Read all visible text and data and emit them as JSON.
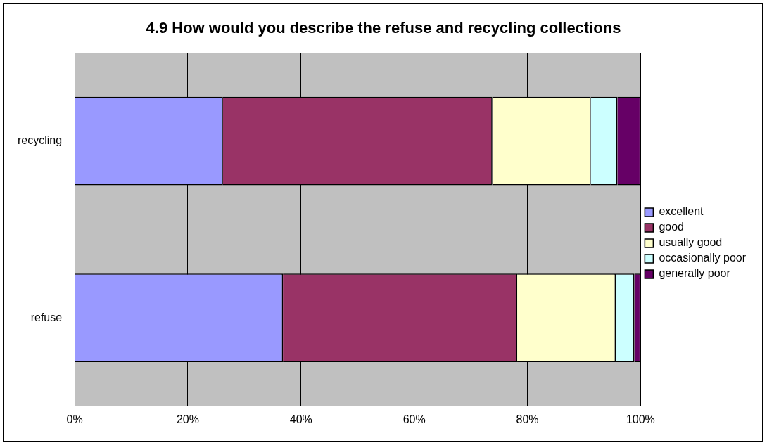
{
  "chart_data": {
    "type": "bar",
    "orientation": "horizontal",
    "stacked": true,
    "title": "4.9 How would you describe the refuse and recycling collections",
    "categories": [
      "recycling",
      "refuse"
    ],
    "series": [
      {
        "name": "excellent",
        "color": "#9999ff",
        "values": [
          26.2,
          36.8
        ]
      },
      {
        "name": "good",
        "color": "#993366",
        "values": [
          47.6,
          41.4
        ]
      },
      {
        "name": "usually good",
        "color": "#ffffcc",
        "values": [
          17.4,
          17.4
        ]
      },
      {
        "name": "occasionally poor",
        "color": "#ccffff",
        "values": [
          4.7,
          3.3
        ]
      },
      {
        "name": "generally poor",
        "color": "#660066",
        "values": [
          4.1,
          1.1
        ]
      }
    ],
    "xlim": [
      0,
      100
    ],
    "xticks": [
      {
        "value": 0,
        "label": "0%"
      },
      {
        "value": 20,
        "label": "20%"
      },
      {
        "value": 40,
        "label": "40%"
      },
      {
        "value": 60,
        "label": "60%"
      },
      {
        "value": 80,
        "label": "80%"
      },
      {
        "value": 100,
        "label": "100%"
      }
    ],
    "grid": "x",
    "legend": "right"
  }
}
